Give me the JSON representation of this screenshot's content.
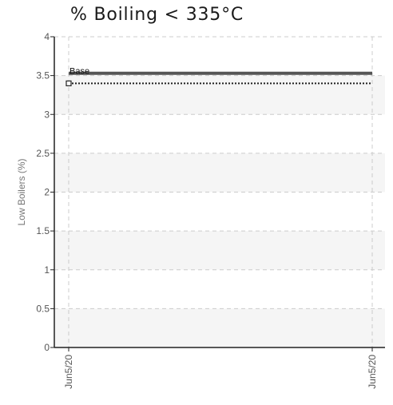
{
  "chart_data": {
    "type": "line",
    "title": "% Boiling < 335°C",
    "ylabel": "Low Boilers (%)",
    "xlabel": "",
    "ylim": [
      0,
      4
    ],
    "yticks": [
      0,
      0.5,
      1,
      1.5,
      2,
      2.5,
      3,
      3.5,
      4
    ],
    "ytick_labels": [
      "0",
      "0.5",
      "1",
      "1.5",
      "2",
      "2.5",
      "3",
      "3.5",
      "4"
    ],
    "categories": [
      "Jun5/20",
      "Jun5/20"
    ],
    "series": [
      {
        "name": "",
        "values": [
          3.53,
          3.53
        ],
        "style": "solid",
        "color": "#555555"
      },
      {
        "name": "Base",
        "values": [
          3.4,
          3.4
        ],
        "style": "dotted",
        "color": "#222222",
        "marker": "square"
      }
    ],
    "grid": true,
    "alternating_bands": true,
    "colors": {
      "axis": "#222222",
      "grid": "#cccccc",
      "band": "#f5f5f5"
    }
  }
}
